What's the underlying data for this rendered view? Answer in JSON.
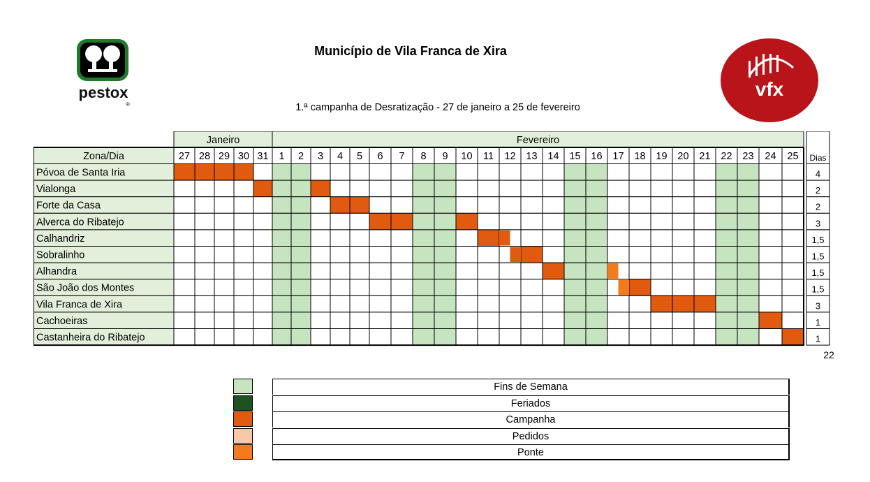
{
  "header": {
    "title": "Município de Vila Franca de Xira",
    "subtitle": "1.ª campanha de Desratização - 27 de janeiro a 25 de fevereiro",
    "logo_left_text": "pestox",
    "logo_right_text": "vfx"
  },
  "colors": {
    "weekend": "#c6e4c0",
    "holiday": "#1e5220",
    "campaign": "#e05a0f",
    "requests": "#f7c8aa",
    "bridge": "#f47a20",
    "rowlabel": "#e2efda",
    "monthhead": "#e2efda"
  },
  "table": {
    "corner_label": "Zona/Dia",
    "dias_label": "Dias",
    "months": [
      {
        "label": "Janeiro",
        "span": 5
      },
      {
        "label": "Fevereiro",
        "span": 25
      }
    ],
    "days": [
      "27",
      "28",
      "29",
      "30",
      "31",
      "1",
      "2",
      "3",
      "4",
      "5",
      "6",
      "7",
      "8",
      "9",
      "10",
      "11",
      "12",
      "13",
      "14",
      "15",
      "16",
      "17",
      "18",
      "19",
      "20",
      "21",
      "22",
      "23",
      "24",
      "25"
    ],
    "weekend_columns": [
      5,
      6,
      12,
      13,
      19,
      20,
      26,
      27
    ],
    "rows": [
      {
        "zone": "Póvoa de Santa Iria",
        "dias": "4",
        "campaign": [
          0,
          1,
          2,
          3
        ],
        "bridge": []
      },
      {
        "zone": "Vialonga",
        "dias": "2",
        "campaign": [
          4,
          7
        ],
        "bridge": []
      },
      {
        "zone": "Forte da Casa",
        "dias": "2",
        "campaign": [
          8,
          9
        ],
        "bridge": []
      },
      {
        "zone": "Alverca do Ribatejo",
        "dias": "3",
        "campaign": [
          10,
          11,
          14
        ],
        "bridge": []
      },
      {
        "zone": "Calhandriz",
        "dias": "1,5",
        "campaign": [
          15
        ],
        "bridge": [],
        "half_campaign": [
          16
        ]
      },
      {
        "zone": "Sobralinho",
        "dias": "1,5",
        "campaign": [
          17
        ],
        "bridge": [],
        "half_campaign_right": [
          16
        ]
      },
      {
        "zone": "Alhandra",
        "dias": "1,5",
        "campaign": [
          18
        ],
        "bridge": [],
        "half_bridge": [
          21
        ]
      },
      {
        "zone": "São João dos Montes",
        "dias": "1,5",
        "campaign": [
          22
        ],
        "bridge": [],
        "half_bridge_right": [
          21
        ]
      },
      {
        "zone": "Vila Franca de Xira",
        "dias": "3",
        "campaign": [
          23,
          24,
          25
        ],
        "bridge": []
      },
      {
        "zone": "Cachoeiras",
        "dias": "1",
        "campaign": [
          28
        ],
        "bridge": []
      },
      {
        "zone": "Castanheira do Ribatejo",
        "dias": "1",
        "campaign": [
          29
        ],
        "bridge": []
      }
    ],
    "total": "22"
  },
  "legend": [
    {
      "label": "Fins de Semana",
      "color": "#c6e4c0"
    },
    {
      "label": "Feriados",
      "color": "#1e5220"
    },
    {
      "label": "Campanha",
      "color": "#e05a0f"
    },
    {
      "label": "Pedidos",
      "color": "#f7c8aa"
    },
    {
      "label": "Ponte",
      "color": "#f47a20"
    }
  ]
}
